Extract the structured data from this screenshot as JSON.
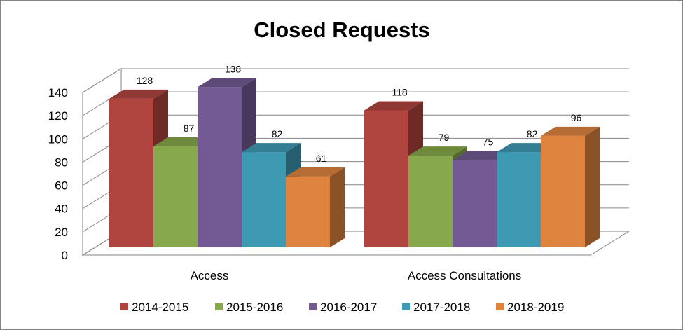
{
  "chart_data": {
    "type": "bar",
    "title": "Closed Requests",
    "categories": [
      "Access",
      "Access Consultations"
    ],
    "series": [
      {
        "name": "2014-2015",
        "values": [
          128,
          118
        ],
        "color": "#B0443F"
      },
      {
        "name": "2015-2016",
        "values": [
          87,
          79
        ],
        "color": "#87A84B"
      },
      {
        "name": "2016-2017",
        "values": [
          138,
          75
        ],
        "color": "#735A94"
      },
      {
        "name": "2017-2018",
        "values": [
          82,
          82
        ],
        "color": "#3E9AB3"
      },
      {
        "name": "2018-2019",
        "values": [
          61,
          96
        ],
        "color": "#DE843E"
      }
    ],
    "ylim": [
      0,
      140
    ],
    "yticks": [
      0,
      20,
      40,
      60,
      80,
      100,
      120,
      140
    ],
    "grid": true,
    "legend": "bottom",
    "style": "3d-clustered-column"
  }
}
